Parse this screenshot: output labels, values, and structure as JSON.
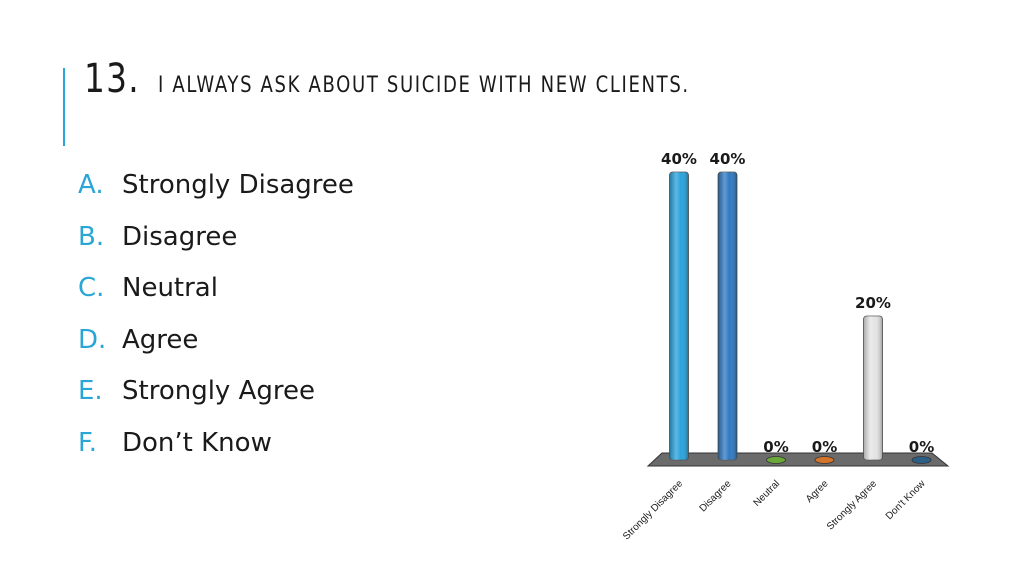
{
  "slide": {
    "number": "13.",
    "title": "I always ask about suicide with new clients.",
    "options": [
      {
        "letter": "A.",
        "label": "Strongly Disagree"
      },
      {
        "letter": "B.",
        "label": "Disagree"
      },
      {
        "letter": "C.",
        "label": "Neutral"
      },
      {
        "letter": "D.",
        "label": "Agree"
      },
      {
        "letter": "E.",
        "label": "Strongly Agree"
      },
      {
        "letter": "F.",
        "label": "Don’t Know"
      }
    ]
  },
  "chart_data": {
    "type": "bar",
    "categories": [
      "Strongly Disagree",
      "Disagree",
      "Neutral",
      "Agree",
      "Strongly Agree",
      "Don't Know"
    ],
    "values": [
      40,
      40,
      0,
      0,
      20,
      0
    ],
    "value_labels": [
      "40%",
      "40%",
      "0%",
      "0%",
      "20%",
      "0%"
    ],
    "colors": [
      "#29a3dc",
      "#2f79c2",
      "#6aa83a",
      "#d2742a",
      "#e4e4e4",
      "#2b5f86"
    ],
    "ylim": [
      0,
      40
    ],
    "grid": false,
    "legend": "none"
  },
  "colors": {
    "accent": "#29a6d6",
    "floor": "#6b6b6b"
  }
}
